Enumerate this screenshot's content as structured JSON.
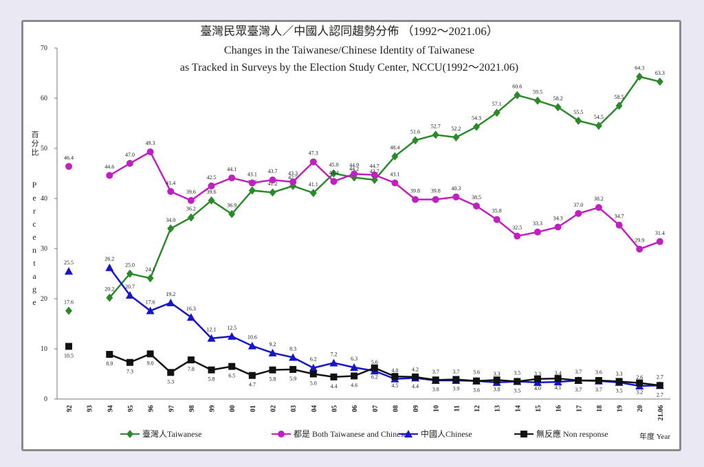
{
  "chart_data": {
    "type": "line",
    "title": "臺灣民眾臺灣人／中國人認同趨勢分佈 （1992～2021.06）",
    "subtitle": "Changes in the Taiwanese/Chinese Identity of Taiwanese",
    "subtitle2": "as Tracked in Surveys by the Election Study Center, NCCU(1992～2021.06)",
    "y_label_zh": "百分比",
    "y_label": "Percentage",
    "x_label": "年度 Year",
    "categories": [
      "92",
      "93",
      "94",
      "95",
      "96",
      "97",
      "98",
      "99",
      "00",
      "01",
      "02",
      "03",
      "04",
      "05",
      "06",
      "07",
      "08",
      "09",
      "10",
      "11",
      "12",
      "13",
      "14",
      "15",
      "16",
      "17",
      "18",
      "19",
      "20",
      "21.06"
    ],
    "ylim": [
      0,
      70
    ],
    "yticks": [
      0,
      10,
      20,
      30,
      40,
      50,
      60,
      70
    ],
    "series": [
      {
        "name": "臺灣人Taiwanese",
        "color": "#2a8a2a",
        "marker": "diamond",
        "values": [
          17.6,
          null,
          20.2,
          25.0,
          24.1,
          34.0,
          36.2,
          39.6,
          36.9,
          41.6,
          41.2,
          42.5,
          41.1,
          45.0,
          44.2,
          43.7,
          48.4,
          51.6,
          52.7,
          52.2,
          54.3,
          57.1,
          60.6,
          59.5,
          58.2,
          55.5,
          54.5,
          58.5,
          64.3,
          63.3
        ],
        "value_labels": [
          "17.6",
          null,
          "20.2",
          "25.0",
          "24.1",
          "34.0",
          "36.2",
          "39.6",
          "36.9",
          "41.6",
          "41.2",
          "42.5",
          "41.1",
          "45.0",
          "44.2",
          "43.7",
          "48.4",
          "51.6",
          "52.7",
          "52.2",
          "54.3",
          "57.1",
          "60.6",
          "59.5",
          "58.2",
          "55.5",
          "54.5",
          "58.5",
          "64.3",
          "63.3"
        ]
      },
      {
        "name": "都是 Both Taiwanese and Chinese",
        "color": "#c21fc2",
        "marker": "circle",
        "values": [
          46.4,
          null,
          44.6,
          47.0,
          49.3,
          41.4,
          39.6,
          42.5,
          44.1,
          43.1,
          43.7,
          43.3,
          47.3,
          43.4,
          44.9,
          44.7,
          43.1,
          39.8,
          39.8,
          40.3,
          38.5,
          35.8,
          32.5,
          33.3,
          34.3,
          37.0,
          38.2,
          34.7,
          29.9,
          31.4
        ],
        "value_labels": [
          "46.4",
          null,
          "44.6",
          "47.0",
          "49.3",
          "41.4",
          "39.6",
          "42.5",
          "44.1",
          "43.1",
          "43.7",
          "43.3",
          "47.3",
          "43.4",
          "44.9",
          "44.7",
          "43.1",
          "39.8",
          "39.8",
          "40.3",
          "38.5",
          "35.8",
          "32.5",
          "33.3",
          "34.3",
          "37.0",
          "38.2",
          "34.7",
          "29.9",
          "31.4"
        ]
      },
      {
        "name": "中國人Chinese",
        "color": "#1515cc",
        "marker": "triangle",
        "values": [
          25.5,
          null,
          26.2,
          20.7,
          17.6,
          19.2,
          16.3,
          12.1,
          12.5,
          10.6,
          9.2,
          8.3,
          6.2,
          7.2,
          6.3,
          5.6,
          4.0,
          4.2,
          3.7,
          3.7,
          3.6,
          3.3,
          3.5,
          3.3,
          3.4,
          3.7,
          3.6,
          3.3,
          2.6,
          2.7
        ],
        "value_labels": [
          "25.5",
          null,
          "26.2",
          "20.7",
          "17.6",
          "19.2",
          "16.3",
          "12.1",
          "12.5",
          "10.6",
          "9.2",
          "8.3",
          "6.2",
          "7.2",
          "6.3",
          "5.6",
          "4.0",
          "4.2",
          "3.7",
          "3.7",
          "3.6",
          "3.3",
          "3.5",
          "3.3",
          "3.4",
          "3.7",
          "3.6",
          "3.3",
          "2.6",
          "2.7"
        ]
      },
      {
        "name": "無反應 Non response",
        "color": "#111111",
        "marker": "square",
        "values": [
          10.5,
          null,
          8.9,
          7.3,
          9.0,
          5.3,
          7.8,
          5.8,
          6.5,
          4.7,
          5.8,
          5.9,
          5.0,
          4.4,
          4.6,
          6.2,
          4.5,
          4.4,
          3.8,
          3.9,
          3.6,
          3.8,
          3.5,
          4.0,
          4.1,
          3.7,
          3.7,
          3.5,
          3.2,
          2.7
        ],
        "value_labels": [
          "10.5",
          null,
          "8.9",
          "7.3",
          "9.0",
          "5.3",
          "7.8",
          "5.8",
          "6.5",
          "4.7",
          "5.8",
          "5.9",
          "5.0",
          "4.4",
          "4.6",
          "6.2",
          "4.5",
          "4.4",
          "3.8",
          "3.9",
          "3.6",
          "3.8",
          "3.5",
          "4.0",
          "4.1",
          "3.7",
          "3.7",
          "3.5",
          "3.2",
          "2.7"
        ]
      }
    ]
  }
}
